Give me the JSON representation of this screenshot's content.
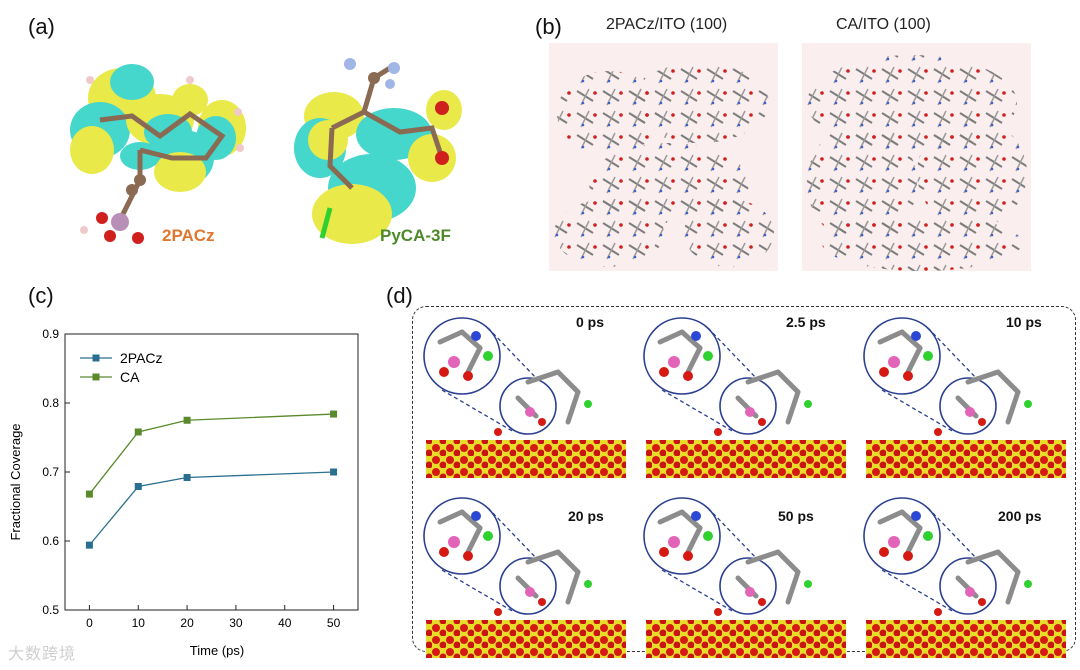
{
  "panels": {
    "a": {
      "label": "(a)",
      "molecules": [
        "2PACz",
        "PyCA-3F"
      ],
      "colors": {
        "2PACz": "#e0772f",
        "PyCA-3F": "#4f8a2a"
      }
    },
    "b": {
      "label": "(b)",
      "titles": [
        "2PACz/ITO (100)",
        "CA/ITO (100)"
      ]
    },
    "c": {
      "label": "(c)"
    },
    "d": {
      "label": "(d)",
      "times": [
        "0 ps",
        "2.5 ps",
        "10 ps",
        "20 ps",
        "50 ps",
        "200 ps"
      ]
    }
  },
  "chart_data": {
    "type": "line",
    "xlabel": "Time (ps)",
    "ylabel": "Fractional Coverage",
    "xlim": [
      -5,
      55
    ],
    "ylim": [
      0.5,
      0.9
    ],
    "xticks": [
      0,
      10,
      20,
      30,
      40,
      50
    ],
    "yticks": [
      0.5,
      0.6,
      0.7,
      0.8,
      0.9
    ],
    "x": [
      0,
      10,
      20,
      50
    ],
    "series": [
      {
        "name": "2PACz",
        "values": [
          0.594,
          0.679,
          0.692,
          0.7
        ],
        "color": "#2a6f8f"
      },
      {
        "name": "CA",
        "values": [
          0.668,
          0.758,
          0.775,
          0.784
        ],
        "color": "#5a8a2c"
      }
    ],
    "legend": "top-left",
    "grid": false
  },
  "watermark": "大数跨境"
}
